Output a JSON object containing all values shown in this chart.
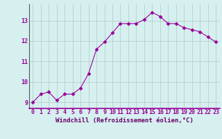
{
  "x": [
    0,
    1,
    2,
    3,
    4,
    5,
    6,
    7,
    8,
    9,
    10,
    11,
    12,
    13,
    14,
    15,
    16,
    17,
    18,
    19,
    20,
    21,
    22,
    23
  ],
  "y": [
    9.0,
    9.4,
    9.5,
    9.1,
    9.4,
    9.4,
    9.7,
    10.4,
    11.6,
    11.95,
    12.4,
    12.85,
    12.85,
    12.85,
    13.05,
    13.4,
    13.2,
    12.85,
    12.85,
    12.65,
    12.55,
    12.45,
    12.2,
    11.95
  ],
  "line_color": "#990099",
  "marker": "D",
  "marker_size": 2.5,
  "bg_color": "#d6f0f0",
  "grid_color": "#b0c8c8",
  "xlabel": "Windchill (Refroidissement éolien,°C)",
  "xlabel_color": "#660066",
  "xlabel_fontsize": 6.5,
  "tick_color": "#990099",
  "tick_fontsize": 6.0,
  "xlim": [
    -0.5,
    23.5
  ],
  "ylim": [
    8.7,
    13.8
  ],
  "yticks": [
    9,
    10,
    11,
    12,
    13
  ],
  "xticks": [
    0,
    1,
    2,
    3,
    4,
    5,
    6,
    7,
    8,
    9,
    10,
    11,
    12,
    13,
    14,
    15,
    16,
    17,
    18,
    19,
    20,
    21,
    22,
    23
  ],
  "axis_line_color": "#990099"
}
